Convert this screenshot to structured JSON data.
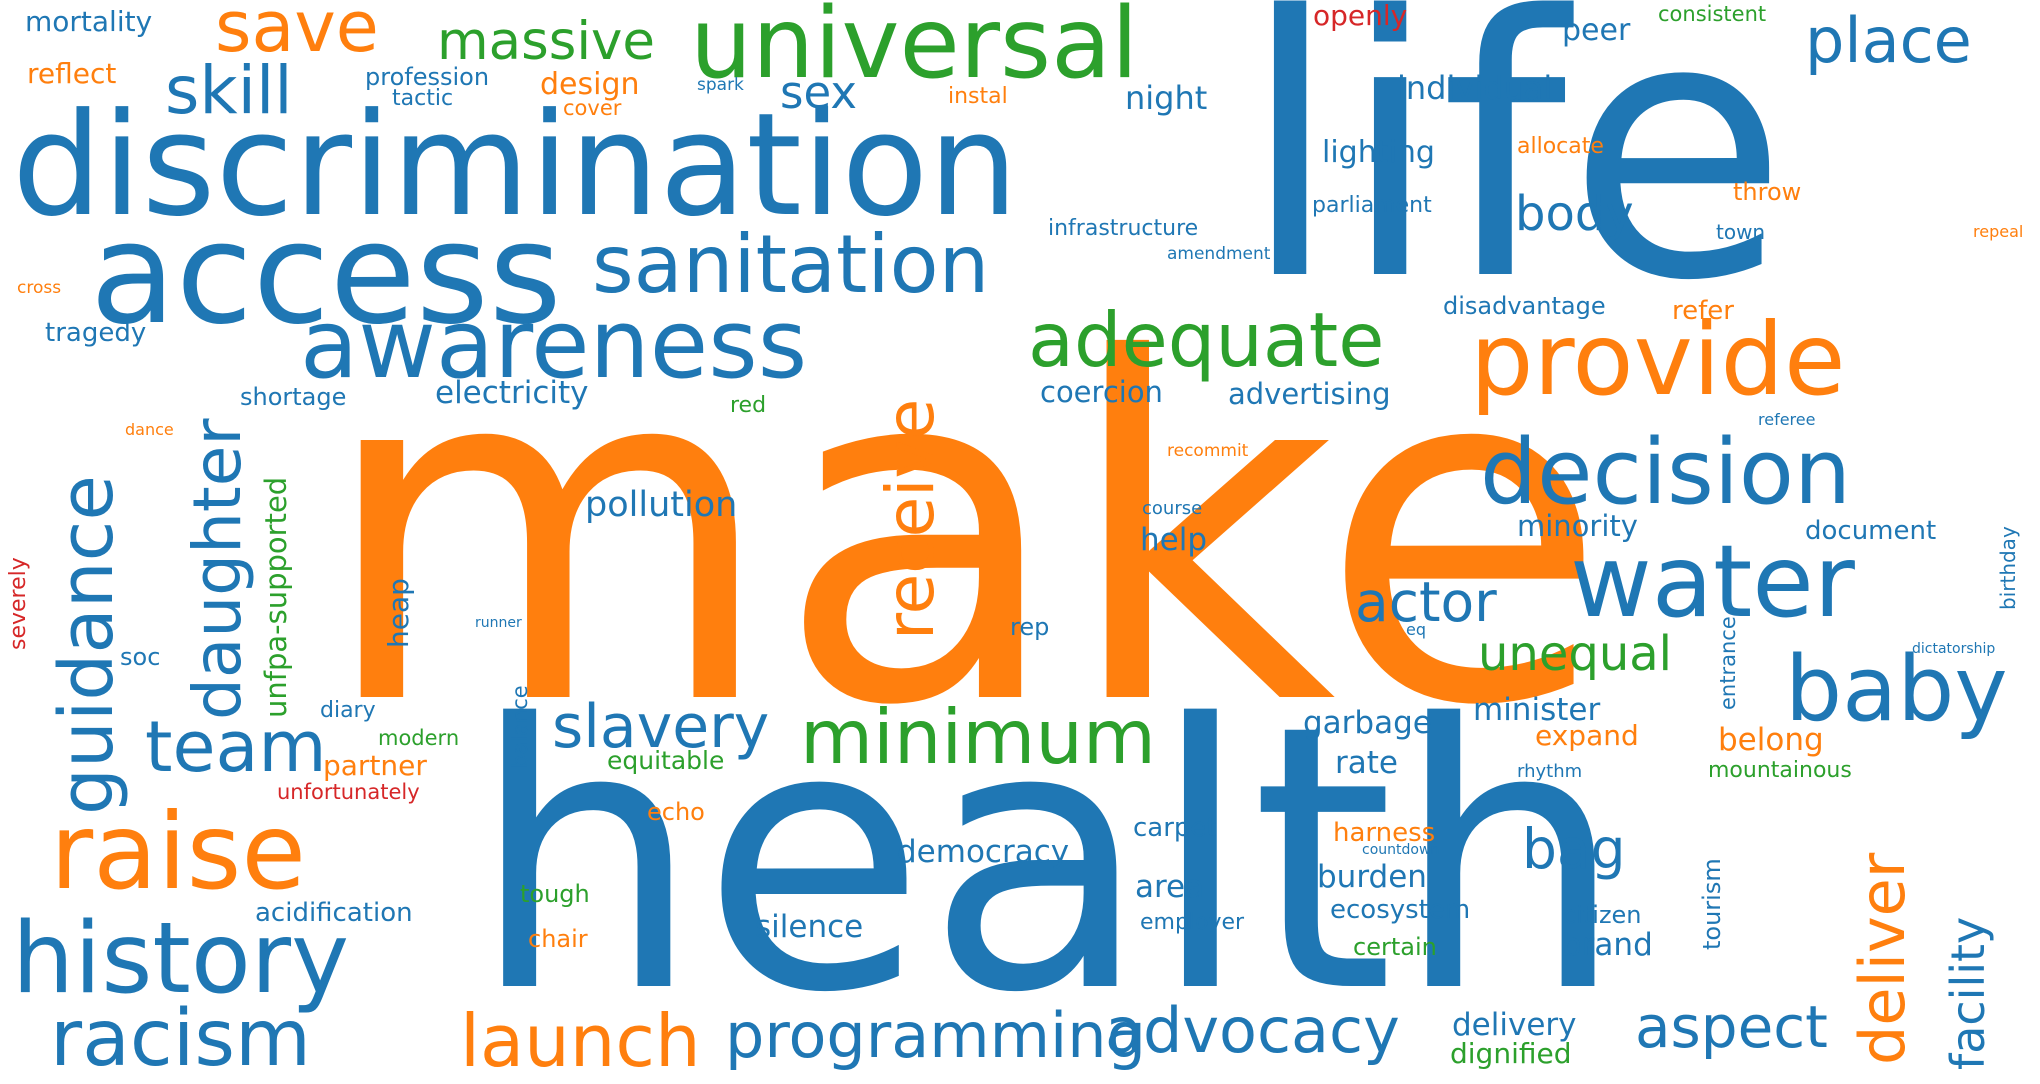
{
  "words": {
    "make": "make",
    "health": "health",
    "life": "life",
    "discrimination": "discrimination",
    "access": "access",
    "universal": "universal",
    "save": "save",
    "skill": "skill",
    "massive": "massive",
    "sanitation": "sanitation",
    "awareness": "awareness",
    "adequate": "adequate",
    "provide": "provide",
    "decision": "decision",
    "water": "water",
    "baby": "baby",
    "raise": "raise",
    "history": "history",
    "racism": "racism",
    "team": "team",
    "guidance": "guidance",
    "daughter": "daughter",
    "receive": "receive",
    "minimum": "minimum",
    "slavery": "slavery",
    "programming": "programming",
    "advocacy": "advocacy",
    "launch": "launch",
    "aspect": "aspect",
    "deliver": "deliver",
    "facility": "facility",
    "place": "place",
    "sex": "sex",
    "mortality": "mortality",
    "reflect": "reflect",
    "profession": "profession",
    "tactic": "tactic",
    "design": "design",
    "cover": "cover",
    "spark": "spark",
    "instal": "instal",
    "night": "night",
    "openly": "openly",
    "peer": "peer",
    "consistent": "consistent",
    "individual": "individual",
    "lighting": "lighting",
    "allocate": "allocate",
    "throw": "throw",
    "parliament": "parliament",
    "body": "body",
    "infrastructure": "infrastructure",
    "town": "town",
    "repeal": "repeal",
    "amendment": "amendment",
    "cross": "cross",
    "tragedy": "tragedy",
    "disadvantage": "disadvantage",
    "refer": "refer",
    "shortage": "shortage",
    "electricity": "electricity",
    "coercion": "coercion",
    "advertising": "advertising",
    "red": "red",
    "referee": "referee",
    "dance": "dance",
    "recommit": "recommit",
    "unfpa_supported": "unfpa-supported",
    "pollution": "pollution",
    "course": "course",
    "help": "help",
    "minority": "minority",
    "document": "document",
    "birthday": "birthday",
    "severely": "severely",
    "heap": "heap",
    "actor": "actor",
    "runner": "runner",
    "rep": "rep",
    "eq": "eq",
    "entrance": "entrance",
    "dictatorship": "dictatorship",
    "soc": "soc",
    "balance": "balance",
    "unequal": "unequal",
    "diary": "diary",
    "modern": "modern",
    "garbage": "garbage",
    "minister": "minister",
    "partner": "partner",
    "equitable": "equitable",
    "expand": "expand",
    "belong": "belong",
    "unfortunately": "unfortunately",
    "rate": "rate",
    "rhythm": "rhythm",
    "mountainous": "mountainous",
    "echo": "echo",
    "carpet": "carpet",
    "harness": "harness",
    "countdown": "countdown",
    "bag": "bag",
    "democracy": "democracy",
    "burden": "burden",
    "area": "area",
    "ecosystem": "ecosystem",
    "tourism": "tourism",
    "acidification": "acidification",
    "tough": "tough",
    "citizen": "citizen",
    "employer": "employer",
    "silence": "silence",
    "brand": "brand",
    "chair": "chair",
    "certain": "certain",
    "delivery": "delivery",
    "dignified": "dignified"
  },
  "colors": {
    "blue": "#1f77b4",
    "orange": "#ff7f0e",
    "green": "#2ca02c",
    "red": "#d62728"
  }
}
